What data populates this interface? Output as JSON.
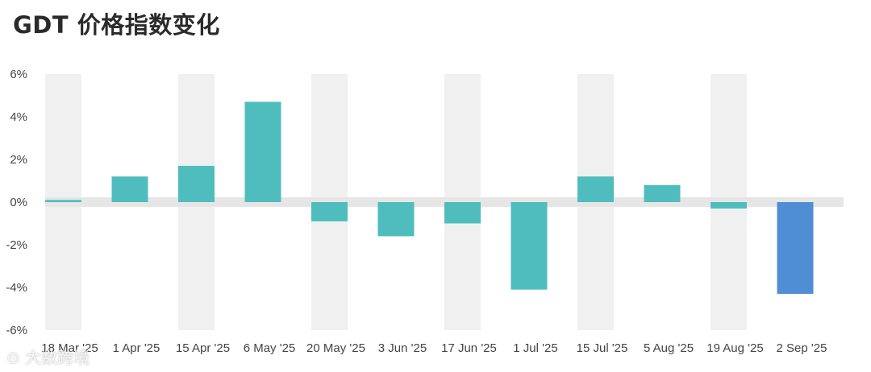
{
  "chart_data": {
    "type": "bar",
    "title": "GDT 价格指数变化",
    "categories": [
      "18 Mar '25",
      "1 Apr '25",
      "15 Apr '25",
      "6 May '25",
      "20 May '25",
      "3 Jun '25",
      "17 Jun '25",
      "1 Jul '25",
      "15 Jul '25",
      "5 Aug '25",
      "19 Aug '25",
      "2 Sep '25"
    ],
    "values": [
      0.1,
      1.2,
      1.7,
      4.7,
      -0.9,
      -1.6,
      -1.0,
      -4.1,
      1.2,
      0.8,
      -0.3,
      -4.3
    ],
    "highlight_index": 11,
    "ylim": [
      -6,
      6
    ],
    "yticks": [
      6,
      4,
      2,
      0,
      -2,
      -4,
      -6
    ],
    "ytick_labels": [
      "6%",
      "4%",
      "2%",
      "0%",
      "-2%",
      "-4%",
      "-6%"
    ],
    "xlabel": "",
    "ylabel": "",
    "grid": "alternating-column-bands",
    "colors": {
      "bar": "#4fbdbd",
      "highlight": "#4f8ed4",
      "band": "#f0f0f0",
      "zero_band": "#e6e6e6"
    }
  },
  "watermark": "⊙ 大数跨境"
}
